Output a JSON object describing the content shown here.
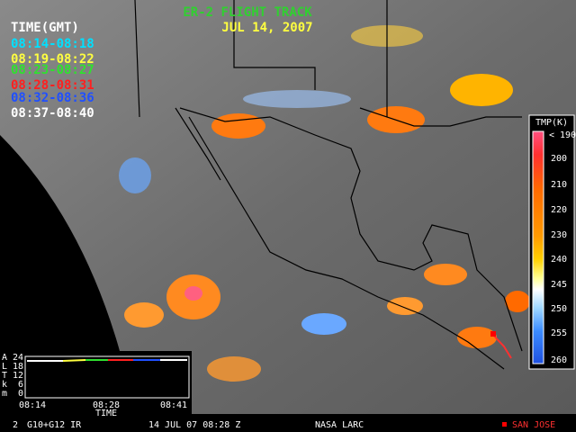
{
  "header": {
    "title": "ER-2 FLIGHT TRACK",
    "date": "JUL 14, 2007",
    "time_heading": "TIME(GMT)"
  },
  "time_legend": [
    "08:14-08:18",
    "08:19-08:22",
    "08:23-08:27",
    "08:28-08:31",
    "08:32-08:36",
    "08:37-08:40"
  ],
  "colorbar": {
    "title": "TMP(K)",
    "labels": [
      "< 190",
      "200",
      "210",
      "220",
      "230",
      "240",
      "245",
      "250",
      "255",
      "260"
    ]
  },
  "inset": {
    "y_letters": [
      "A",
      "L",
      "T",
      "k",
      "m"
    ],
    "yticks": [
      "24",
      "18",
      "12",
      "6",
      "0"
    ],
    "xticks": [
      "08:14",
      "08:28",
      "08:41"
    ],
    "x_label": "TIME"
  },
  "footer": {
    "frame": "2",
    "satellite": "G10+G12 IR",
    "timestamp": "14 JUL 07 08:28 Z",
    "source": "NASA LARC",
    "marker": "SAN JOSE"
  }
}
